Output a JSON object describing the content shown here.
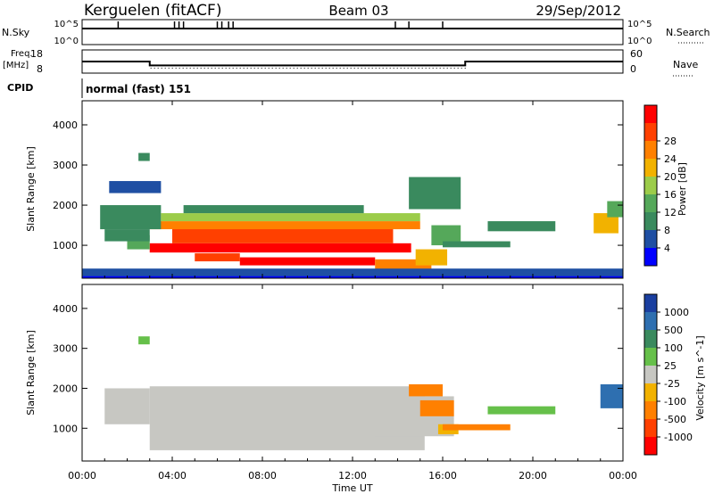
{
  "header": {
    "station": "Kerguelen (fitACF)",
    "beam": "Beam 03",
    "date": "29/Sep/2012"
  },
  "top_panels": {
    "nsky_label": "N.Sky",
    "nsky_ticks": [
      "10^5",
      "10^0"
    ],
    "nsearch_label": "N.Search",
    "nsearch_ticks": [
      "10^5",
      "10^0"
    ],
    "freq_label_1": "Freq.",
    "freq_label_2": "[MHz]",
    "freq_ticks": [
      "18",
      "8"
    ],
    "nave_label": "Nave",
    "nave_ticks": [
      "60",
      "0"
    ],
    "cpid_label": "CPID",
    "cpid_text": "normal (fast) 151"
  },
  "colors": {
    "power": [
      "#0000ff",
      "#1f4fa3",
      "#3a8a5e",
      "#55a85a",
      "#9ccc4a",
      "#f2b200",
      "#ff8000",
      "#ff4000",
      "#ff0000"
    ],
    "velocity": [
      "#1a3fa0",
      "#2e6fb0",
      "#3a8a5e",
      "#66c04a",
      "#c7c7c2",
      "#f2b200",
      "#ff8000",
      "#ff4000",
      "#ff0000"
    ],
    "ground_scatter": "#c7c7c2"
  },
  "chart_data": [
    {
      "type": "heatmap",
      "panel": "power",
      "ylabel": "Slant Range [km]",
      "ylim": [
        180,
        4600
      ],
      "yticks": [
        "1000",
        "2000",
        "3000",
        "4000"
      ],
      "colorbar_label": "Power [dB]",
      "colorbar_ticks": [
        "4",
        "8",
        "12",
        "16",
        "20",
        "24",
        "28"
      ],
      "colorbar_range": [
        0,
        32
      ],
      "regions": [
        {
          "t0": 3.0,
          "t1": 14.6,
          "r0": 820,
          "r1": 1050,
          "value": 30
        },
        {
          "t0": 4.0,
          "t1": 13.8,
          "r0": 1050,
          "r1": 1500,
          "value": 27
        },
        {
          "t0": 3.0,
          "t1": 15.0,
          "r0": 1400,
          "r1": 1600,
          "value": 22
        },
        {
          "t0": 2.0,
          "t1": 3.0,
          "r0": 900,
          "r1": 1250,
          "value": 14
        },
        {
          "t0": 1.0,
          "t1": 3.0,
          "r0": 1100,
          "r1": 1400,
          "value": 10
        },
        {
          "t0": 0.8,
          "t1": 3.5,
          "r0": 1400,
          "r1": 2000,
          "value": 9
        },
        {
          "t0": 3.5,
          "t1": 15.0,
          "r0": 1600,
          "r1": 1800,
          "value": 16
        },
        {
          "t0": 4.5,
          "t1": 12.5,
          "r0": 1800,
          "r1": 2000,
          "value": 9
        },
        {
          "t0": 7.0,
          "t1": 13.0,
          "r0": 500,
          "r1": 700,
          "value": 30
        },
        {
          "t0": 5.0,
          "t1": 7.0,
          "r0": 600,
          "r1": 800,
          "value": 25
        },
        {
          "t0": 13.0,
          "t1": 15.5,
          "r0": 400,
          "r1": 650,
          "value": 22
        },
        {
          "t0": 14.8,
          "t1": 16.2,
          "r0": 500,
          "r1": 900,
          "value": 20
        },
        {
          "t0": 15.5,
          "t1": 16.8,
          "r0": 1000,
          "r1": 1500,
          "value": 12
        },
        {
          "t0": 14.5,
          "t1": 16.8,
          "r0": 1900,
          "r1": 2700,
          "value": 10
        },
        {
          "t0": 16.0,
          "t1": 19.0,
          "r0": 950,
          "r1": 1100,
          "value": 9
        },
        {
          "t0": 18.0,
          "t1": 21.0,
          "r0": 1350,
          "r1": 1600,
          "value": 8
        },
        {
          "t0": 22.7,
          "t1": 23.8,
          "r0": 1300,
          "r1": 1800,
          "value": 20
        },
        {
          "t0": 23.3,
          "t1": 24.0,
          "r0": 1700,
          "r1": 2100,
          "value": 12
        },
        {
          "t0": 1.2,
          "t1": 3.5,
          "r0": 2300,
          "r1": 2600,
          "value": 6
        },
        {
          "t0": 2.5,
          "t1": 3.0,
          "r0": 3100,
          "r1": 3300,
          "value": 10
        },
        {
          "t0": 0.0,
          "t1": 24.0,
          "r0": 180,
          "r1": 420,
          "value": 6
        },
        {
          "t0": 0.0,
          "t1": 24.0,
          "r0": 180,
          "r1": 230,
          "value": 2
        }
      ]
    },
    {
      "type": "heatmap",
      "panel": "velocity",
      "ylabel": "Slant Range [km]",
      "ylim": [
        180,
        4600
      ],
      "yticks": [
        "1000",
        "2000",
        "3000",
        "4000"
      ],
      "colorbar_label": "Velocity [m s^-1]",
      "colorbar_ticks": [
        "1000",
        "500",
        "100",
        "25",
        "-25",
        "-100",
        "-500",
        "-1000"
      ],
      "regions": [
        {
          "t0": 3.0,
          "t1": 15.2,
          "r0": 450,
          "r1": 2050,
          "value": 0
        },
        {
          "t0": 1.0,
          "t1": 3.0,
          "r0": 1100,
          "r1": 2000,
          "value": 0
        },
        {
          "t0": 13.0,
          "t1": 16.5,
          "r0": 800,
          "r1": 1800,
          "value": 0
        },
        {
          "t0": 15.0,
          "t1": 16.5,
          "r0": 1300,
          "r1": 1700,
          "value": -300
        },
        {
          "t0": 14.5,
          "t1": 16.0,
          "r0": 1800,
          "r1": 2100,
          "value": -150
        },
        {
          "t0": 15.8,
          "t1": 16.7,
          "r0": 850,
          "r1": 1100,
          "value": -80
        },
        {
          "t0": 2.5,
          "t1": 3.0,
          "r0": 3100,
          "r1": 3300,
          "value": 60
        },
        {
          "t0": 18.0,
          "t1": 21.0,
          "r0": 1350,
          "r1": 1550,
          "value": 60
        },
        {
          "t0": 23.0,
          "t1": 24.0,
          "r0": 1500,
          "r1": 2100,
          "value": 800
        },
        {
          "t0": 16.0,
          "t1": 19.0,
          "r0": 950,
          "r1": 1100,
          "value": -200
        }
      ]
    }
  ],
  "x_axis": {
    "label": "Time UT",
    "xlim": [
      0,
      24
    ],
    "tick_labels": [
      "00:00",
      "04:00",
      "08:00",
      "12:00",
      "16:00",
      "20:00",
      "00:00"
    ]
  },
  "freq_series": [
    [
      0,
      13
    ],
    [
      3,
      13
    ],
    [
      3,
      11
    ],
    [
      17,
      11
    ],
    [
      17,
      13
    ],
    [
      24,
      13
    ]
  ],
  "nave_series": [
    [
      0,
      30
    ],
    [
      3,
      30
    ],
    [
      3,
      10
    ],
    [
      17,
      10
    ],
    [
      17,
      30
    ],
    [
      24,
      30
    ]
  ]
}
